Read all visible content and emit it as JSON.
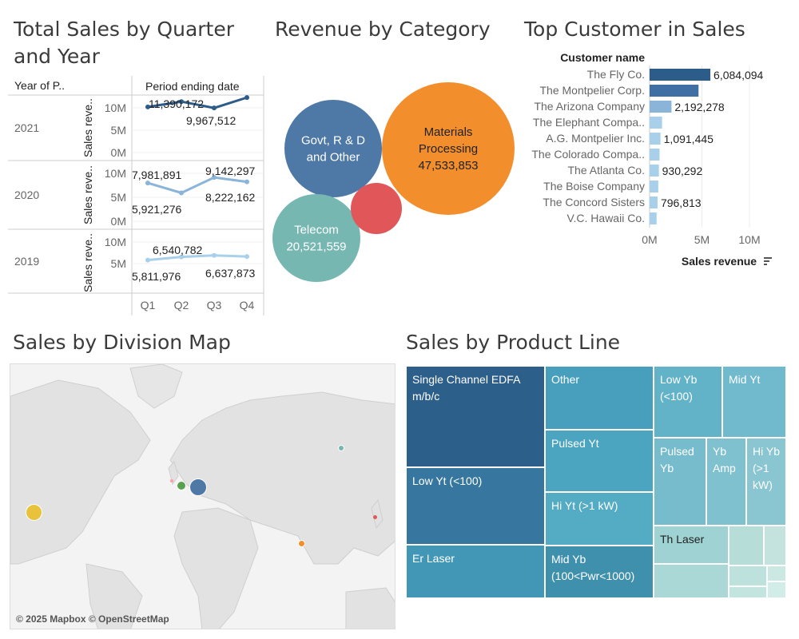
{
  "titles": {
    "quarter": "Total Sales by Quarter and Year",
    "category": "Revenue by Category",
    "customer": "Top Customer in Sales",
    "map": "Sales by Division Map",
    "product": "Sales by Product Line"
  },
  "colors": {
    "dark_blue": "#2c5d8a",
    "mid_blue": "#5d8fbf",
    "light_blue": "#a8d0ea",
    "orange": "#f28e2b",
    "red": "#e15759",
    "teal": "#76b7b2",
    "steel": "#4e79a7"
  },
  "quarter_chart": {
    "row_header": "Year of P..",
    "col_header": "Period ending date",
    "y_axis_label": "Sales reve..",
    "y_axis_label_short": "Sales reve..",
    "y_axis_label_full": "Sales revenue",
    "quarters": [
      "Q1",
      "Q2",
      "Q3",
      "Q4"
    ],
    "y_ticks": [
      "10M",
      "5M",
      "0M"
    ],
    "y_ticks_2019": [
      "10M",
      "5M"
    ]
  },
  "chart_data": [
    {
      "type": "line",
      "categories": [
        "Q1",
        "Q2",
        "Q3",
        "Q4"
      ],
      "series": [
        {
          "name": "2021",
          "values": [
            10200000,
            11390172,
            9967512,
            12300000
          ],
          "color": "#2c5d8a",
          "labels": [
            "",
            "11,390,172",
            "9,967,512",
            ""
          ]
        },
        {
          "name": "2020",
          "values": [
            7981891,
            5921276,
            9142297,
            8222162
          ],
          "color": "#8ab4d8",
          "labels": [
            "7,981,891",
            "5,921,276",
            "9,142,297",
            "8,222,162"
          ]
        },
        {
          "name": "2019",
          "values": [
            5811976,
            6540782,
            6900000,
            6637873
          ],
          "color": "#a8d0ea",
          "labels": [
            "5,811,976",
            "6,540,782",
            "",
            "6,637,873"
          ]
        }
      ],
      "ylim": [
        0,
        13000000
      ]
    },
    {
      "type": "bubble",
      "items": [
        {
          "label_lines": [
            "Materials",
            "Processing",
            "47,533,853"
          ],
          "value": 47533853,
          "color": "#f28e2b"
        },
        {
          "label_lines": [
            "Govt, R & D",
            "and Other"
          ],
          "value": 24000000,
          "color": "#4e79a7"
        },
        {
          "label_lines": [
            "Telecom",
            "20,521,559"
          ],
          "value": 20521559,
          "color": "#76b7b2"
        },
        {
          "label_lines": [],
          "value": 8000000,
          "color": "#e15759"
        }
      ]
    },
    {
      "type": "bar",
      "orientation": "horizontal",
      "ylabel": "Customer name",
      "xlabel": "Sales revenue",
      "categories": [
        "The Fly Co.",
        "The Montpelier Corp.",
        "The Arizona Company",
        "The Elephant Compa..",
        "A.G. Montpelier Inc.",
        "The Colorado Compa..",
        "The Atlanta Co.",
        "The Boise Company",
        "The Concord Sisters",
        "V.C. Hawaii Co."
      ],
      "values": [
        6084094,
        4900000,
        2192278,
        1250000,
        1091445,
        1000000,
        930292,
        870000,
        796813,
        700000
      ],
      "value_labels": [
        "6,084,094",
        "",
        "2,192,278",
        "",
        "1,091,445",
        "",
        "930,292",
        "",
        "796,813",
        ""
      ],
      "colors": [
        "#2c5d8a",
        "#3f6fa3",
        "#8ab4d8",
        "#a8d0ea",
        "#a8d0ea",
        "#a8d0ea",
        "#a8d0ea",
        "#a8d0ea",
        "#a8d0ea",
        "#a8d0ea"
      ],
      "x_ticks": [
        "0M",
        "5M",
        "10M"
      ],
      "xlim": [
        0,
        12000000
      ]
    },
    {
      "type": "treemap",
      "items": [
        {
          "label": "Single Channel EDFA m/b/c",
          "color": "#2d5f8b"
        },
        {
          "label": "Low Yt (<100)",
          "color": "#37779f"
        },
        {
          "label": "Er Laser",
          "color": "#4197b5"
        },
        {
          "label": "Other",
          "color": "#479fbd"
        },
        {
          "label": "Pulsed Yt",
          "color": "#4ba5c0"
        },
        {
          "label": "Hi Yt (>1 kW)",
          "color": "#54abc4"
        },
        {
          "label": "Mid Yb (100<Pwr<1000)",
          "color": "#3f90ad"
        },
        {
          "label": "Low Yb (<100)",
          "color": "#62b2c8"
        },
        {
          "label": "Mid Yt",
          "color": "#71b9cc"
        },
        {
          "label": "Pulsed Yb",
          "color": "#76bccd"
        },
        {
          "label": "Yb Amp",
          "color": "#7fc1cf"
        },
        {
          "label": "Hi Yb (>1 kW)",
          "color": "#8ac6d1"
        },
        {
          "label": "Th Laser",
          "color": "#9fd2d3"
        },
        {
          "label": "",
          "color": "#b7ddd9"
        },
        {
          "label": "",
          "color": "#c4e3df"
        },
        {
          "label": "",
          "color": "#a9d8d6"
        },
        {
          "label": "",
          "color": "#bde2dd"
        },
        {
          "label": "",
          "color": "#cce8e3"
        },
        {
          "label": "",
          "color": "#c2e5e0"
        },
        {
          "label": "",
          "color": "#d2ece7"
        }
      ]
    }
  ],
  "map": {
    "attribution": "© 2025 Mapbox © OpenStreetMap",
    "points": [
      {
        "name": "us-point",
        "color": "#e8c23a"
      },
      {
        "name": "uk-point",
        "color": "#59a14f"
      },
      {
        "name": "germany-point",
        "color": "#4e79a7"
      },
      {
        "name": "india-point",
        "color": "#f28e2b"
      },
      {
        "name": "russia-point",
        "color": "#76b7b2"
      },
      {
        "name": "japan-point",
        "color": "#e15759"
      },
      {
        "name": "ireland-point",
        "color": "#ff9da7"
      }
    ]
  }
}
